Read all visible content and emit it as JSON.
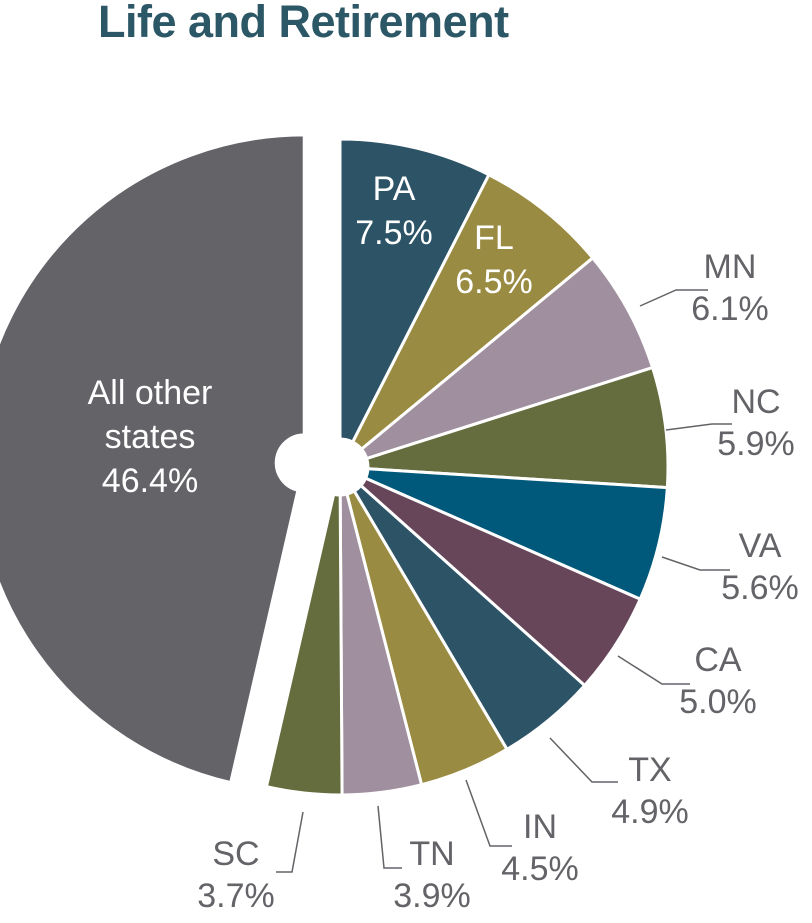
{
  "chart_data": {
    "type": "pie",
    "title": "Life and Retirement",
    "slices": [
      {
        "label": "PA",
        "value": 7.5,
        "value_label": "7.5%",
        "color": "#2c5466"
      },
      {
        "label": "FL",
        "value": 6.5,
        "value_label": "6.5%",
        "color": "#9a8b42"
      },
      {
        "label": "MN",
        "value": 6.1,
        "value_label": "6.1%",
        "color": "#a0909f"
      },
      {
        "label": "NC",
        "value": 5.9,
        "value_label": "5.9%",
        "color": "#656c3d"
      },
      {
        "label": "VA",
        "value": 5.6,
        "value_label": "5.6%",
        "color": "#00587a"
      },
      {
        "label": "CA",
        "value": 5.0,
        "value_label": "5.0%",
        "color": "#674659"
      },
      {
        "label": "TX",
        "value": 4.9,
        "value_label": "4.9%",
        "color": "#2c5466"
      },
      {
        "label": "IN",
        "value": 4.5,
        "value_label": "4.5%",
        "color": "#9a8b42"
      },
      {
        "label": "TN",
        "value": 3.9,
        "value_label": "3.9%",
        "color": "#a0909f"
      },
      {
        "label": "SC",
        "value": 3.7,
        "value_label": "3.7%",
        "color": "#656c3d"
      },
      {
        "label": "All other states",
        "value": 46.4,
        "value_label": "46.4%",
        "color": "#636368"
      }
    ],
    "label_color": "#636368",
    "inside_label_color": "#ffffff"
  }
}
